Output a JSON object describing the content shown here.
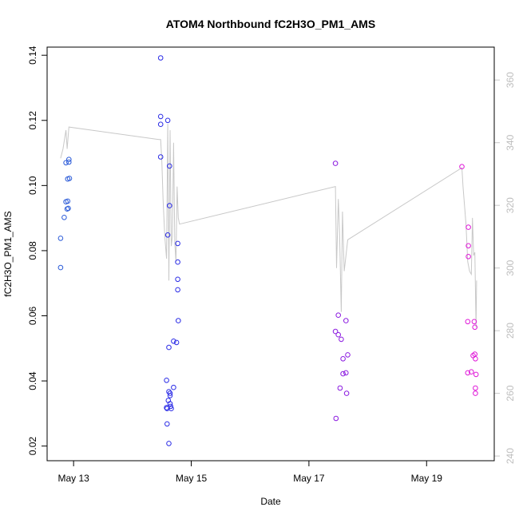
{
  "chart_data": {
    "type": "scatter",
    "title": "ATOM4 Northbound fC2H3O_PM1_AMS",
    "xlabel": "Date",
    "ylabel": "fC2H3O_PM1_AMS",
    "x_unit": "days (May 13 = 13.0)",
    "xlim": [
      12.55,
      20.15
    ],
    "ylim": [
      0.0155,
      0.1425
    ],
    "y2lim": [
      238.5,
      370.5
    ],
    "x_ticks": [
      {
        "value": 13,
        "label": "May 13"
      },
      {
        "value": 15,
        "label": "May 15"
      },
      {
        "value": 17,
        "label": "May 17"
      },
      {
        "value": 19,
        "label": "May 19"
      }
    ],
    "y_ticks": [
      {
        "value": 0.02,
        "label": "0.02"
      },
      {
        "value": 0.04,
        "label": "0.04"
      },
      {
        "value": 0.06,
        "label": "0.06"
      },
      {
        "value": 0.08,
        "label": "0.08"
      },
      {
        "value": 0.1,
        "label": "0.10"
      },
      {
        "value": 0.12,
        "label": "0.12"
      },
      {
        "value": 0.14,
        "label": "0.14"
      }
    ],
    "y2_ticks": [
      {
        "value": 240,
        "label": "240"
      },
      {
        "value": 260,
        "label": "260"
      },
      {
        "value": 280,
        "label": "280"
      },
      {
        "value": 300,
        "label": "300"
      },
      {
        "value": 320,
        "label": "320"
      },
      {
        "value": 340,
        "label": "340"
      },
      {
        "value": 360,
        "label": "360"
      }
    ],
    "points": [
      {
        "x": 12.78,
        "y": 0.0748,
        "color": "#2b5bd8"
      },
      {
        "x": 12.78,
        "y": 0.0838,
        "color": "#2b5bd8"
      },
      {
        "x": 12.84,
        "y": 0.0902,
        "color": "#2b5bd8"
      },
      {
        "x": 12.87,
        "y": 0.095,
        "color": "#2b5bd8"
      },
      {
        "x": 12.87,
        "y": 0.107,
        "color": "#2b5bd8"
      },
      {
        "x": 12.89,
        "y": 0.0928,
        "color": "#2b5bd8"
      },
      {
        "x": 12.9,
        "y": 0.0952,
        "color": "#2b5bd8"
      },
      {
        "x": 12.9,
        "y": 0.102,
        "color": "#2b5bd8"
      },
      {
        "x": 12.91,
        "y": 0.093,
        "color": "#2b5bd8"
      },
      {
        "x": 12.92,
        "y": 0.1072,
        "color": "#2b5bd8"
      },
      {
        "x": 12.93,
        "y": 0.1022,
        "color": "#2b5bd8"
      },
      {
        "x": 12.92,
        "y": 0.108,
        "color": "#2b5bd8"
      },
      {
        "x": 14.48,
        "y": 0.1392,
        "color": "#2a2be6"
      },
      {
        "x": 14.48,
        "y": 0.1212,
        "color": "#2a2be6"
      },
      {
        "x": 14.48,
        "y": 0.1188,
        "color": "#2a2be6"
      },
      {
        "x": 14.48,
        "y": 0.1088,
        "color": "#2a2be6"
      },
      {
        "x": 14.58,
        "y": 0.0402,
        "color": "#2a2be6"
      },
      {
        "x": 14.58,
        "y": 0.0318,
        "color": "#2a2be6"
      },
      {
        "x": 14.59,
        "y": 0.0315,
        "color": "#2a2be6"
      },
      {
        "x": 14.59,
        "y": 0.0268,
        "color": "#2a2be6"
      },
      {
        "x": 14.6,
        "y": 0.0848,
        "color": "#2a2be6"
      },
      {
        "x": 14.6,
        "y": 0.12,
        "color": "#2a2be6"
      },
      {
        "x": 14.61,
        "y": 0.034,
        "color": "#2a2be6"
      },
      {
        "x": 14.62,
        "y": 0.0367,
        "color": "#2a2be6"
      },
      {
        "x": 14.62,
        "y": 0.0503,
        "color": "#2a2be6"
      },
      {
        "x": 14.62,
        "y": 0.0208,
        "color": "#2a2be6"
      },
      {
        "x": 14.63,
        "y": 0.106,
        "color": "#2a2be6"
      },
      {
        "x": 14.63,
        "y": 0.0938,
        "color": "#2a2be6"
      },
      {
        "x": 14.64,
        "y": 0.0362,
        "color": "#2a2be6"
      },
      {
        "x": 14.64,
        "y": 0.0355,
        "color": "#2a2be6"
      },
      {
        "x": 14.64,
        "y": 0.033,
        "color": "#2a2be6"
      },
      {
        "x": 14.65,
        "y": 0.0322,
        "color": "#2a2be6"
      },
      {
        "x": 14.66,
        "y": 0.0315,
        "color": "#2a2be6"
      },
      {
        "x": 14.7,
        "y": 0.038,
        "color": "#2a2be6"
      },
      {
        "x": 14.7,
        "y": 0.0522,
        "color": "#2a2be6"
      },
      {
        "x": 14.75,
        "y": 0.0518,
        "color": "#2a2be6"
      },
      {
        "x": 14.77,
        "y": 0.0822,
        "color": "#2a2be6"
      },
      {
        "x": 14.77,
        "y": 0.0765,
        "color": "#2a2be6"
      },
      {
        "x": 14.77,
        "y": 0.0712,
        "color": "#2a2be6"
      },
      {
        "x": 14.77,
        "y": 0.068,
        "color": "#2a2be6"
      },
      {
        "x": 14.78,
        "y": 0.0585,
        "color": "#2a2be6"
      },
      {
        "x": 17.45,
        "y": 0.1068,
        "color": "#8b1ae0"
      },
      {
        "x": 17.45,
        "y": 0.0552,
        "color": "#8b1ae0"
      },
      {
        "x": 17.46,
        "y": 0.0285,
        "color": "#8b1ae0"
      },
      {
        "x": 17.5,
        "y": 0.0602,
        "color": "#8b1ae0"
      },
      {
        "x": 17.5,
        "y": 0.0542,
        "color": "#8b1ae0"
      },
      {
        "x": 17.53,
        "y": 0.0378,
        "color": "#8b1ae0"
      },
      {
        "x": 17.55,
        "y": 0.0528,
        "color": "#8b1ae0"
      },
      {
        "x": 17.58,
        "y": 0.0468,
        "color": "#8b1ae0"
      },
      {
        "x": 17.58,
        "y": 0.0422,
        "color": "#8b1ae0"
      },
      {
        "x": 17.63,
        "y": 0.0585,
        "color": "#8b1ae0"
      },
      {
        "x": 17.63,
        "y": 0.0425,
        "color": "#8b1ae0"
      },
      {
        "x": 17.64,
        "y": 0.0362,
        "color": "#8b1ae0"
      },
      {
        "x": 17.66,
        "y": 0.048,
        "color": "#8b1ae0"
      },
      {
        "x": 19.6,
        "y": 0.1058,
        "color": "#e018d8"
      },
      {
        "x": 19.7,
        "y": 0.0425,
        "color": "#e018d8"
      },
      {
        "x": 19.7,
        "y": 0.0582,
        "color": "#e018d8"
      },
      {
        "x": 19.71,
        "y": 0.0872,
        "color": "#e018d8"
      },
      {
        "x": 19.71,
        "y": 0.0815,
        "color": "#e018d8"
      },
      {
        "x": 19.71,
        "y": 0.0782,
        "color": "#e018d8"
      },
      {
        "x": 19.76,
        "y": 0.0428,
        "color": "#e018d8"
      },
      {
        "x": 19.79,
        "y": 0.0478,
        "color": "#e018d8"
      },
      {
        "x": 19.81,
        "y": 0.0582,
        "color": "#e018d8"
      },
      {
        "x": 19.82,
        "y": 0.0565,
        "color": "#e018d8"
      },
      {
        "x": 19.82,
        "y": 0.0482,
        "color": "#e018d8"
      },
      {
        "x": 19.83,
        "y": 0.0468,
        "color": "#e018d8"
      },
      {
        "x": 19.83,
        "y": 0.0378,
        "color": "#e018d8"
      },
      {
        "x": 19.83,
        "y": 0.0362,
        "color": "#e018d8"
      },
      {
        "x": 19.84,
        "y": 0.042,
        "color": "#e018d8"
      }
    ],
    "secondary_line": {
      "name": "altitude trace (right axis)",
      "color": "#c8c8c8",
      "points": [
        [
          12.78,
          335
        ],
        [
          12.82,
          338
        ],
        [
          12.87,
          344
        ],
        [
          12.89,
          338
        ],
        [
          12.92,
          345
        ],
        [
          14.45,
          341
        ],
        [
          14.48,
          341
        ],
        [
          14.5,
          334
        ],
        [
          14.52,
          322
        ],
        [
          14.55,
          310
        ],
        [
          14.58,
          303
        ],
        [
          14.6,
          346
        ],
        [
          14.62,
          296
        ],
        [
          14.64,
          344
        ],
        [
          14.66,
          307
        ],
        [
          14.68,
          310
        ],
        [
          14.7,
          340
        ],
        [
          14.72,
          308
        ],
        [
          14.74,
          302
        ],
        [
          14.76,
          326
        ],
        [
          14.78,
          316
        ],
        [
          14.8,
          314
        ],
        [
          17.45,
          326
        ],
        [
          17.47,
          300
        ],
        [
          17.5,
          322
        ],
        [
          17.52,
          312
        ],
        [
          17.55,
          286
        ],
        [
          17.57,
          318
        ],
        [
          17.6,
          299
        ],
        [
          17.63,
          304
        ],
        [
          17.66,
          309
        ],
        [
          19.6,
          332
        ],
        [
          19.62,
          326
        ],
        [
          19.67,
          314
        ],
        [
          19.7,
          302
        ],
        [
          19.73,
          299
        ],
        [
          19.76,
          298
        ],
        [
          19.78,
          316
        ],
        [
          19.8,
          304
        ],
        [
          19.82,
          305
        ],
        [
          19.84,
          281
        ],
        [
          19.85,
          296
        ]
      ]
    }
  }
}
